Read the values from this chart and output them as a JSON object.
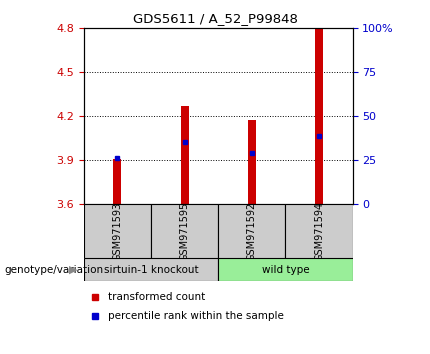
{
  "title": "GDS5611 / A_52_P99848",
  "samples": [
    "GSM971593",
    "GSM971595",
    "GSM971592",
    "GSM971594"
  ],
  "bar_values": [
    3.905,
    4.27,
    4.175,
    4.8
  ],
  "bar_bottom": 3.6,
  "percentile_values": [
    3.915,
    4.02,
    3.945,
    4.06
  ],
  "ylim": [
    3.6,
    4.8
  ],
  "yticks_left": [
    3.6,
    3.9,
    4.2,
    4.5,
    4.8
  ],
  "yticks_right": [
    0,
    25,
    50,
    75,
    100
  ],
  "ytick_labels_left": [
    "3.6",
    "3.9",
    "4.2",
    "4.5",
    "4.8"
  ],
  "ytick_labels_right": [
    "0",
    "25",
    "50",
    "75",
    "100%"
  ],
  "bar_color": "#cc0000",
  "percentile_color": "#0000cc",
  "group1_label": "sirtuin-1 knockout",
  "group2_label": "wild type",
  "group1_color": "#cccccc",
  "group2_color": "#99ee99",
  "group1_samples": [
    0,
    1
  ],
  "group2_samples": [
    2,
    3
  ],
  "legend_bar_label": "transformed count",
  "legend_pct_label": "percentile rank within the sample",
  "genotype_label": "genotype/variation",
  "left_tick_color": "#cc0000",
  "right_tick_color": "#0000cc",
  "bar_width": 0.12
}
